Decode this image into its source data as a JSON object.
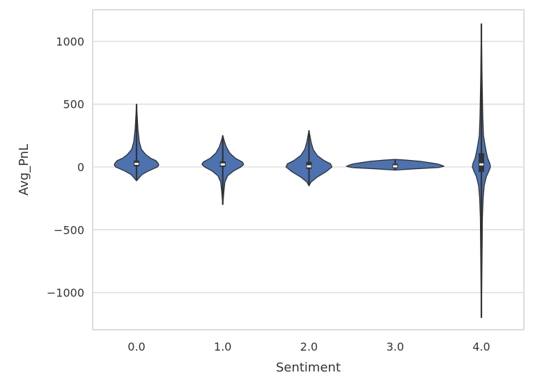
{
  "chart_data": {
    "type": "violin",
    "xlabel": "Sentiment",
    "ylabel": "Avg_PnL",
    "categories": [
      "0.0",
      "1.0",
      "2.0",
      "3.0",
      "4.0"
    ],
    "yticks": [
      1000,
      500,
      0,
      -500,
      -1000
    ],
    "ytick_labels": [
      "1000",
      "500",
      "0",
      "−500",
      "−1000"
    ],
    "ylim": [
      -1290,
      1260
    ],
    "grid": "horizontal",
    "colors": {
      "violin_fill": "#4c72b0",
      "violin_edge": "#2f2f2f",
      "box": "#333333",
      "median": "#ffffff",
      "grid": "#d9d9d9",
      "frame": "#d9d9d9"
    },
    "violins": [
      {
        "category": "0.0",
        "min": -110,
        "max": 500,
        "q1": 5,
        "q3": 50,
        "median": 25,
        "profile": [
          [
            -110,
            0
          ],
          [
            -90,
            3
          ],
          [
            -60,
            8
          ],
          [
            -35,
            16
          ],
          [
            -15,
            24
          ],
          [
            0,
            30
          ],
          [
            15,
            32
          ],
          [
            30,
            31
          ],
          [
            50,
            28
          ],
          [
            70,
            20
          ],
          [
            100,
            13
          ],
          [
            140,
            7
          ],
          [
            200,
            4
          ],
          [
            300,
            2
          ],
          [
            400,
            1
          ],
          [
            500,
            0
          ]
        ]
      },
      {
        "category": "1.0",
        "min": -300,
        "max": 250,
        "q1": 0,
        "q3": 45,
        "median": 20,
        "profile": [
          [
            -300,
            0
          ],
          [
            -200,
            1.5
          ],
          [
            -120,
            3
          ],
          [
            -70,
            7
          ],
          [
            -30,
            16
          ],
          [
            0,
            26
          ],
          [
            20,
            30
          ],
          [
            40,
            28
          ],
          [
            70,
            18
          ],
          [
            110,
            10
          ],
          [
            160,
            5
          ],
          [
            210,
            2
          ],
          [
            250,
            0
          ]
        ]
      },
      {
        "category": "2.0",
        "min": -150,
        "max": 290,
        "q1": -15,
        "q3": 40,
        "median": 5,
        "profile": [
          [
            -150,
            0
          ],
          [
            -120,
            3
          ],
          [
            -80,
            12
          ],
          [
            -40,
            24
          ],
          [
            0,
            33
          ],
          [
            25,
            31
          ],
          [
            50,
            22
          ],
          [
            90,
            12
          ],
          [
            140,
            6
          ],
          [
            200,
            3
          ],
          [
            290,
            0
          ]
        ]
      },
      {
        "category": "3.0",
        "min": -25,
        "max": 60,
        "q1": -10,
        "q3": 25,
        "median": 5,
        "profile": [
          [
            -25,
            0
          ],
          [
            -15,
            28
          ],
          [
            -5,
            62
          ],
          [
            5,
            70
          ],
          [
            15,
            66
          ],
          [
            25,
            60
          ],
          [
            35,
            48
          ],
          [
            45,
            36
          ],
          [
            55,
            16
          ],
          [
            60,
            0
          ]
        ]
      },
      {
        "category": "4.0",
        "min": -1200,
        "max": 1140,
        "q1": -40,
        "q3": 110,
        "median": 20,
        "profile": [
          [
            -1200,
            0
          ],
          [
            -800,
            0.8
          ],
          [
            -400,
            1.5
          ],
          [
            -250,
            2.5
          ],
          [
            -150,
            4
          ],
          [
            -80,
            7
          ],
          [
            -30,
            11
          ],
          [
            0,
            13
          ],
          [
            30,
            12
          ],
          [
            70,
            9
          ],
          [
            120,
            7
          ],
          [
            180,
            5
          ],
          [
            250,
            3
          ],
          [
            400,
            2
          ],
          [
            700,
            1
          ],
          [
            1140,
            0
          ]
        ]
      }
    ]
  }
}
